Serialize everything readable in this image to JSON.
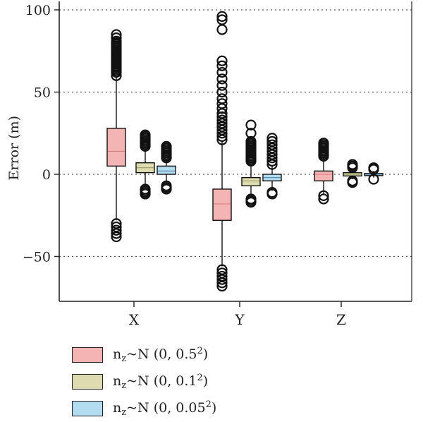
{
  "chart_data": {
    "type": "box",
    "ylabel": "Error (m)",
    "xlabel": "",
    "categories": [
      "X",
      "Y",
      "Z"
    ],
    "y_ticks": [
      "100",
      "50",
      "0",
      "−50"
    ],
    "y_tick_values": [
      100,
      50,
      0,
      -50
    ],
    "ylim": [
      -72,
      105
    ],
    "grid": "horizontal dotted",
    "legend_position": "bottom-left",
    "series": [
      {
        "name_parts": {
          "prefix": "n",
          "sub": "z",
          "mid": "~N (0, 0.5",
          "sup": "2",
          "suffix": ")"
        },
        "fill": "#f4b4b4",
        "median_color": "#d98080",
        "boxes": [
          {
            "category": "X",
            "q1": 5,
            "median": 14,
            "q3": 28,
            "whisker_low": -28,
            "whisker_high": 59,
            "outliers": [
              60,
              62,
              63,
              64,
              65,
              66,
              67,
              68,
              69,
              70,
              71,
              72,
              73,
              74,
              75,
              76,
              77,
              78,
              79,
              80,
              81,
              83,
              85,
              -30,
              -32,
              -34,
              -36,
              -38
            ]
          },
          {
            "category": "Y",
            "q1": -28,
            "median": -18,
            "q3": -9,
            "whisker_low": -56,
            "whisker_high": 20,
            "outliers": [
              21,
              23,
              25,
              27,
              29,
              31,
              33,
              35,
              37,
              40,
              43,
              46,
              50,
              54,
              58,
              62,
              66,
              69,
              88,
              94,
              96,
              -58,
              -60,
              -62,
              -64,
              -66,
              -68
            ]
          },
          {
            "category": "Z",
            "q1": -4,
            "median": 0,
            "q3": 2,
            "whisker_low": -12,
            "whisker_high": 10,
            "outliers": [
              11,
              12,
              13,
              14,
              15,
              16,
              17,
              18,
              19,
              -13,
              -15
            ]
          }
        ]
      },
      {
        "name_parts": {
          "prefix": "n",
          "sub": "z",
          "mid": "~N (0, 0.1",
          "sup": "2",
          "suffix": ")"
        },
        "fill": "#dcdcb0",
        "median_color": "#9a9a60",
        "boxes": [
          {
            "category": "X",
            "q1": 1,
            "median": 4,
            "q3": 7,
            "whisker_low": -8,
            "whisker_high": 16,
            "outliers": [
              17,
              18,
              19,
              20,
              21,
              22,
              23,
              24,
              -9,
              -10,
              -11,
              -12
            ]
          },
          {
            "category": "Y",
            "q1": -7,
            "median": -4,
            "q3": -2,
            "whisker_low": -14,
            "whisker_high": 7,
            "outliers": [
              8,
              9,
              10,
              11,
              12,
              13,
              14,
              15,
              16,
              17,
              18,
              19,
              20,
              25,
              30,
              -15,
              -16,
              -17
            ]
          },
          {
            "category": "Z",
            "q1": -1,
            "median": 0,
            "q3": 1,
            "whisker_low": -3,
            "whisker_high": 3,
            "outliers": [
              4,
              5,
              6,
              -4,
              -5
            ]
          }
        ]
      },
      {
        "name_parts": {
          "prefix": "n",
          "sub": "z",
          "mid": "~N (0, 0.05",
          "sup": "2",
          "suffix": ")"
        },
        "fill": "#b4dcf0",
        "median_color": "#5c8fb0",
        "boxes": [
          {
            "category": "X",
            "q1": 0,
            "median": 2,
            "q3": 5,
            "whisker_low": -6,
            "whisker_high": 9,
            "outliers": [
              10,
              11,
              12,
              13,
              14,
              15,
              16,
              17,
              -7,
              -8,
              -9
            ]
          },
          {
            "category": "Y",
            "q1": -4,
            "median": -2,
            "q3": 0,
            "whisker_low": -10,
            "whisker_high": 5,
            "outliers": [
              6,
              8,
              10,
              12,
              14,
              16,
              18,
              20,
              22,
              -11,
              -12
            ]
          },
          {
            "category": "Z",
            "q1": -0.5,
            "median": 0,
            "q3": 0.5,
            "whisker_low": -2,
            "whisker_high": 2,
            "outliers": [
              3,
              4,
              -3
            ]
          }
        ]
      }
    ]
  }
}
